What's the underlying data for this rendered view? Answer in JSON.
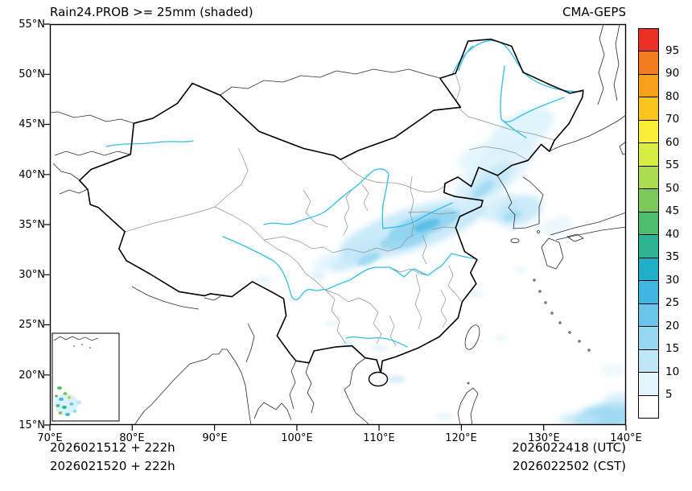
{
  "header": {
    "title": "Rain24.PROB >= 25mm (shaded)",
    "model": "CMA-GEPS"
  },
  "axes": {
    "lat_labels": [
      "55°N",
      "50°N",
      "45°N",
      "40°N",
      "35°N",
      "30°N",
      "25°N",
      "20°N",
      "15°N"
    ],
    "lon_labels": [
      "70°E",
      "80°E",
      "90°E",
      "100°E",
      "110°E",
      "120°E",
      "130°E",
      "140°E"
    ]
  },
  "colorbar": {
    "labels": [
      "95",
      "90",
      "80",
      "70",
      "60",
      "55",
      "50",
      "45",
      "40",
      "35",
      "30",
      "25",
      "20",
      "15",
      "10",
      "5"
    ],
    "colors": [
      "#e93223",
      "#f37c20",
      "#f9a11b",
      "#fcc51d",
      "#fbee3b",
      "#d9ec43",
      "#abdc52",
      "#7ccb5a",
      "#4fbd6e",
      "#2fb393",
      "#21aeca",
      "#41b6e3",
      "#6cc6ec",
      "#97d7f2",
      "#c0e7f8",
      "#e3f4fc",
      "#ffffff"
    ]
  },
  "footer": {
    "left_line1": "2026021512 + 222h",
    "left_line2": "2026021520 + 222h",
    "right_line1": "2026022418 (UTC)",
    "right_line2": "2026022502 (CST)"
  },
  "map_colors": {
    "national_boundary": "#000000",
    "province_boundary": "#8f8f8f",
    "coastline_foreign": "#2b2b2b",
    "river": "#2fbfe8",
    "shade_pale": "#dbf2fc",
    "shade_light": "#bfe6f8",
    "shade_mid": "#8fd3f0",
    "shade_deep": "#55bce8"
  }
}
